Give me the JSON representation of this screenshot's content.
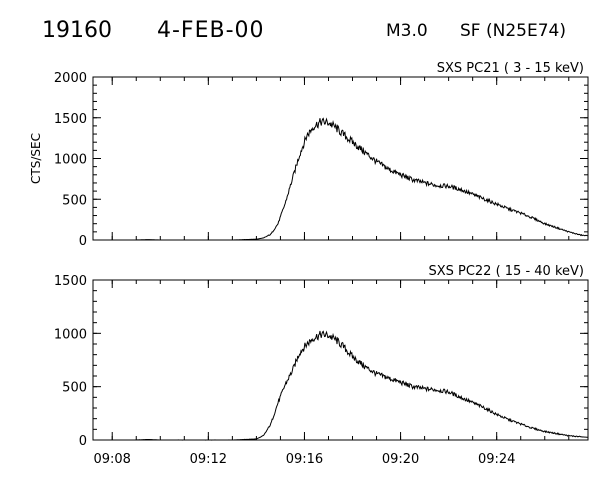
{
  "header": {
    "event_number": "19160",
    "date": "4-FEB-00",
    "flare_class": "M3.0",
    "location": "SF (N25E74)"
  },
  "chart_data": [
    {
      "type": "line",
      "title": "SXS PC21  (  3 - 15 keV)",
      "ylabel": "CTS/SEC",
      "xlabel": "",
      "ylim": [
        0,
        2000
      ],
      "yticks": [
        0,
        500,
        1000,
        1500,
        2000
      ],
      "xlim": [
        7.2,
        27.8
      ],
      "xtick_values": [
        8,
        12,
        16,
        20,
        24
      ],
      "xtick_labels": [
        "09:08",
        "09:12",
        "09:16",
        "09:20",
        "09:24"
      ],
      "series": [
        {
          "x": [
            8.9,
            9.5,
            10,
            11,
            12,
            13,
            13.5,
            14,
            14.3,
            14.6,
            14.9,
            15.2,
            15.5,
            15.8,
            16.1,
            16.4,
            16.7,
            17.0,
            17.3,
            17.6,
            18.0,
            18.5,
            19.0,
            19.5,
            20.0,
            20.5,
            21.0,
            21.5,
            22.0,
            22.5,
            23.0,
            23.5,
            24.0,
            24.5,
            25.0,
            25.5,
            26.0,
            26.5,
            27.0,
            27.5,
            27.8
          ],
          "values": [
            0,
            5,
            0,
            0,
            0,
            0,
            5,
            10,
            25,
            70,
            200,
            450,
            750,
            1050,
            1280,
            1400,
            1450,
            1440,
            1380,
            1300,
            1200,
            1080,
            960,
            870,
            800,
            740,
            700,
            670,
            660,
            620,
            560,
            500,
            440,
            380,
            330,
            270,
            200,
            150,
            100,
            60,
            50
          ]
        }
      ]
    },
    {
      "type": "line",
      "title": "SXS PC22  ( 15 - 40 keV)",
      "ylabel": "",
      "xlabel": "",
      "ylim": [
        0,
        1500
      ],
      "yticks": [
        0,
        500,
        1000,
        1500
      ],
      "xlim": [
        7.2,
        27.8
      ],
      "xtick_values": [
        8,
        12,
        16,
        20,
        24
      ],
      "xtick_labels": [
        "09:08",
        "09:12",
        "09:16",
        "09:20",
        "09:24"
      ],
      "series": [
        {
          "x": [
            8.9,
            9.5,
            10,
            11,
            12,
            13,
            13.5,
            14,
            14.3,
            14.6,
            14.9,
            15.2,
            15.5,
            15.8,
            16.1,
            16.4,
            16.7,
            17.0,
            17.3,
            17.6,
            18.0,
            18.5,
            19.0,
            19.5,
            20.0,
            20.5,
            21.0,
            21.5,
            22.0,
            22.5,
            23.0,
            23.5,
            24.0,
            24.5,
            25.0,
            25.5,
            26.0,
            26.5,
            27.0,
            27.5,
            27.8
          ],
          "values": [
            0,
            5,
            0,
            0,
            0,
            0,
            5,
            10,
            40,
            150,
            350,
            520,
            650,
            820,
            900,
            960,
            990,
            980,
            940,
            880,
            780,
            690,
            620,
            580,
            540,
            500,
            480,
            470,
            450,
            400,
            350,
            300,
            240,
            190,
            150,
            110,
            80,
            60,
            40,
            30,
            25
          ]
        }
      ]
    }
  ]
}
